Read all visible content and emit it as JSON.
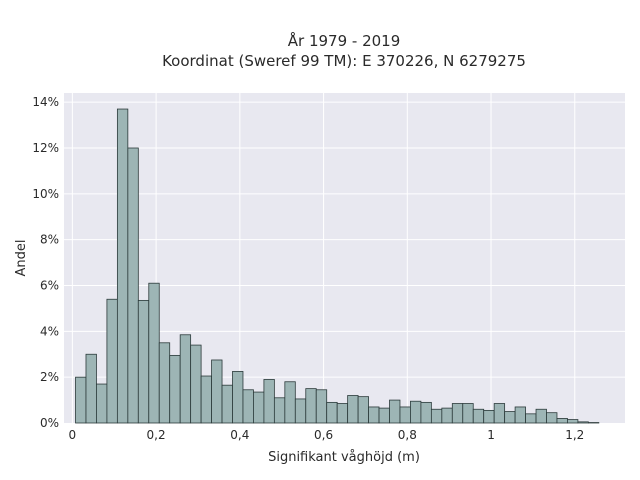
{
  "chart_data": {
    "type": "bar",
    "title_line1": "År 1979 - 2019",
    "title_line2": "Koordinat (Sweref 99 TM): E 370226, N 6279275",
    "xlabel": "Signifikant våghöjd (m)",
    "ylabel": "Andel",
    "xlim": [
      -0.02,
      1.32
    ],
    "ylim": [
      0,
      14.4
    ],
    "grid": true,
    "x_ticks": [
      {
        "value": 0,
        "label": "0"
      },
      {
        "value": 0.2,
        "label": "0,2"
      },
      {
        "value": 0.4,
        "label": "0,4"
      },
      {
        "value": 0.6,
        "label": "0,6"
      },
      {
        "value": 0.8,
        "label": "0,8"
      },
      {
        "value": 1.0,
        "label": "1"
      },
      {
        "value": 1.2,
        "label": "1,2"
      }
    ],
    "y_ticks": [
      {
        "value": 0,
        "label": "0%"
      },
      {
        "value": 2,
        "label": "2%"
      },
      {
        "value": 4,
        "label": "4%"
      },
      {
        "value": 6,
        "label": "6%"
      },
      {
        "value": 8,
        "label": "8%"
      },
      {
        "value": 10,
        "label": "10%"
      },
      {
        "value": 12,
        "label": "12%"
      },
      {
        "value": 14,
        "label": "14%"
      }
    ],
    "bin_width": 0.025,
    "bin_start": 0.0075,
    "values": [
      2.0,
      3.0,
      1.7,
      5.4,
      13.7,
      12.0,
      5.35,
      6.1,
      3.5,
      2.95,
      3.85,
      3.4,
      2.05,
      2.75,
      1.65,
      2.25,
      1.45,
      1.35,
      1.9,
      1.1,
      1.8,
      1.05,
      1.5,
      1.45,
      0.9,
      0.85,
      1.2,
      1.15,
      0.7,
      0.65,
      1.0,
      0.7,
      0.95,
      0.9,
      0.6,
      0.65,
      0.85,
      0.85,
      0.6,
      0.55,
      0.85,
      0.5,
      0.7,
      0.4,
      0.6,
      0.45,
      0.2,
      0.15,
      0.05,
      0.02
    ],
    "colors": {
      "bar_fill": "#9db5b5",
      "bar_stroke": "#2b3a3a",
      "plot_bg": "#e8e8f0",
      "grid": "#ffffff"
    }
  }
}
